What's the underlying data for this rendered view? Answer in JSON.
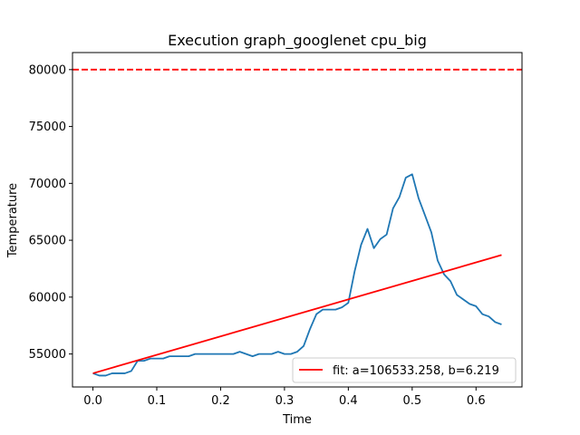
{
  "chart_data": {
    "type": "line",
    "title": "Execution graph_googlenet cpu_big",
    "xlabel": "Time",
    "ylabel": "Temperature",
    "xlim": [
      -0.032,
      0.672
    ],
    "ylim": [
      52100,
      81500
    ],
    "xticks": [
      0.0,
      0.1,
      0.2,
      0.3,
      0.4,
      0.5,
      0.6
    ],
    "xtick_labels": [
      "0.0",
      "0.1",
      "0.2",
      "0.3",
      "0.4",
      "0.5",
      "0.6"
    ],
    "yticks": [
      55000,
      60000,
      65000,
      70000,
      75000,
      80000
    ],
    "ytick_labels": [
      "55000",
      "60000",
      "65000",
      "70000",
      "75000",
      "80000"
    ],
    "legend_position": "lower-right",
    "threshold": {
      "y": 80000,
      "color": "#ff0000",
      "style": "dashed"
    },
    "series": [
      {
        "color": "#1f77b4",
        "x": [
          0.0,
          0.01,
          0.02,
          0.03,
          0.04,
          0.05,
          0.06,
          0.07,
          0.08,
          0.09,
          0.1,
          0.11,
          0.12,
          0.13,
          0.14,
          0.15,
          0.16,
          0.17,
          0.18,
          0.19,
          0.2,
          0.21,
          0.22,
          0.23,
          0.24,
          0.25,
          0.26,
          0.27,
          0.28,
          0.29,
          0.3,
          0.31,
          0.32,
          0.33,
          0.34,
          0.35,
          0.36,
          0.37,
          0.38,
          0.39,
          0.4,
          0.41,
          0.42,
          0.43,
          0.44,
          0.45,
          0.46,
          0.47,
          0.48,
          0.49,
          0.5,
          0.51,
          0.52,
          0.53,
          0.54,
          0.55,
          0.56,
          0.57,
          0.58,
          0.59,
          0.6,
          0.61,
          0.62,
          0.63,
          0.64
        ],
        "y": [
          53300,
          53100,
          53100,
          53300,
          53300,
          53300,
          53500,
          54400,
          54400,
          54600,
          54600,
          54600,
          54800,
          54800,
          54800,
          54800,
          55000,
          55000,
          55000,
          55000,
          55000,
          55000,
          55000,
          55200,
          55000,
          54800,
          55000,
          55000,
          55000,
          55200,
          55000,
          55000,
          55200,
          55700,
          57200,
          58500,
          58900,
          58900,
          58900,
          59100,
          59500,
          62300,
          64600,
          66000,
          64300,
          65100,
          65500,
          67800,
          68800,
          70500,
          70800,
          68700,
          67200,
          65700,
          63200,
          62000,
          61400,
          60200,
          59800,
          59400,
          59200,
          58500,
          58300,
          57800,
          57600
        ]
      },
      {
        "name": "fit: a=106533.258, b=6.219",
        "color": "#ff0000",
        "x": [
          0.0,
          0.64
        ],
        "y": [
          53300,
          63700
        ]
      }
    ]
  }
}
